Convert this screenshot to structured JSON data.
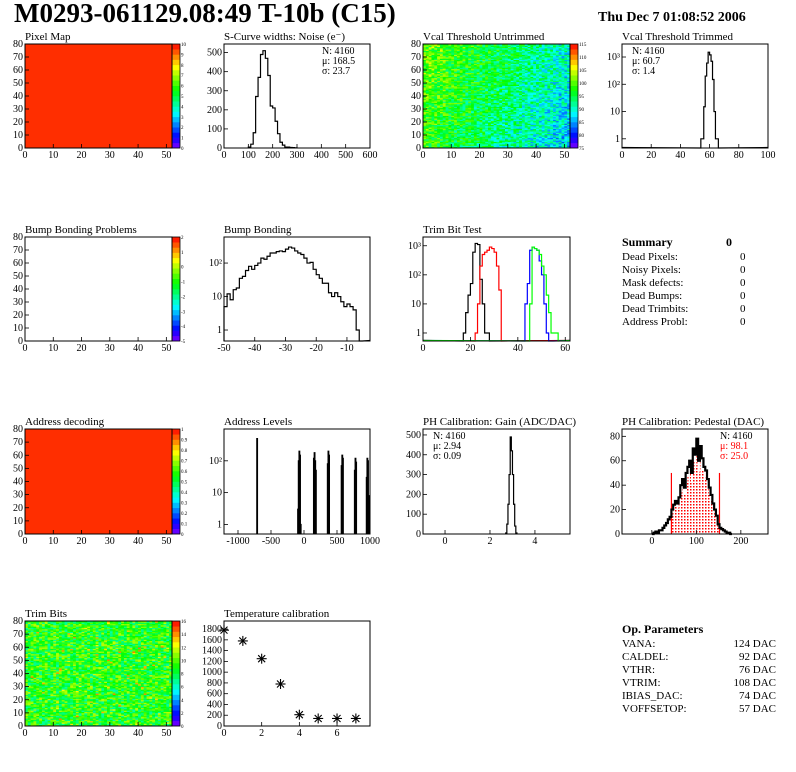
{
  "header": {
    "title": "M0293-061129.08:49 T-10b (C15)",
    "date": "Thu Dec  7 01:08:52 2006"
  },
  "summary": {
    "title": "Summary",
    "total": "0",
    "rows": [
      {
        "label": "Dead Pixels:",
        "value": "0"
      },
      {
        "label": "Noisy Pixels:",
        "value": "0"
      },
      {
        "label": "Mask defects:",
        "value": "0"
      },
      {
        "label": "Dead Bumps:",
        "value": "0"
      },
      {
        "label": "Dead Trimbits:",
        "value": "0"
      },
      {
        "label": "Address Probl:",
        "value": "0"
      }
    ]
  },
  "op_parameters": {
    "title": "Op. Parameters",
    "rows": [
      {
        "label": "VANA:",
        "value": "124 DAC"
      },
      {
        "label": "CALDEL:",
        "value": "92 DAC"
      },
      {
        "label": "VTHR:",
        "value": "76 DAC"
      },
      {
        "label": "VTRIM:",
        "value": "108 DAC"
      },
      {
        "label": "IBIAS_DAC:",
        "value": "74 DAC"
      },
      {
        "label": "VOFFSETOP:",
        "value": "57 DAC"
      }
    ]
  },
  "colors": {
    "hist": "#000000",
    "red": "#ff0000",
    "blue": "#0000ff",
    "green": "#00ff00"
  },
  "chart_data": [
    {
      "id": "pixel-map",
      "type": "heatmap",
      "title": "Pixel Map",
      "xlim": [
        0,
        52
      ],
      "ylim": [
        0,
        80
      ],
      "xticks": [
        0,
        10,
        20,
        30,
        40,
        50
      ],
      "yticks": [
        0,
        10,
        20,
        30,
        40,
        50,
        60,
        70,
        80
      ],
      "zlim": [
        0,
        10
      ],
      "zticks": [
        "0",
        "1",
        "2",
        "3",
        "4",
        "5",
        "6",
        "7",
        "8",
        "9",
        "10"
      ],
      "pattern": "uniform",
      "value": 10
    },
    {
      "id": "scurve",
      "type": "bar",
      "title": "S-Curve widths: Noise (e⁻)",
      "xlim": [
        0,
        600
      ],
      "ylim": [
        0,
        545
      ],
      "xticks": [
        0,
        100,
        200,
        300,
        400,
        500,
        600
      ],
      "yticks": [
        0,
        100,
        200,
        300,
        400,
        500
      ],
      "stats": [
        "N: 4160",
        "μ: 168.5",
        "σ: 23.7"
      ],
      "series": [
        {
          "color": "#000000",
          "start": 100,
          "width": 10,
          "values": [
            5,
            20,
            80,
            270,
            370,
            490,
            510,
            470,
            380,
            220,
            210,
            140,
            75,
            30,
            15,
            5,
            5,
            3,
            2,
            1
          ]
        }
      ]
    },
    {
      "id": "vcal-untrimmed",
      "type": "heatmap",
      "title": "Vcal Threshold Untrimmed",
      "xlim": [
        0,
        52
      ],
      "ylim": [
        0,
        80
      ],
      "xticks": [
        0,
        10,
        20,
        30,
        40,
        50
      ],
      "yticks": [
        0,
        10,
        20,
        30,
        40,
        50,
        60,
        70,
        80
      ],
      "zlim": [
        75,
        117
      ],
      "zticks": [
        "75",
        "80",
        "85",
        "90",
        "95",
        "100",
        "105",
        "110",
        "115"
      ],
      "pattern": "noisy-gradient",
      "mean": 93
    },
    {
      "id": "vcal-trimmed",
      "type": "bar",
      "title": "Vcal Threshold Trimmed",
      "xlim": [
        0,
        100
      ],
      "ylim": [
        0.46,
        3000
      ],
      "log_y": true,
      "xticks": [
        0,
        20,
        40,
        60,
        80,
        100
      ],
      "yticks": [
        1,
        10,
        100,
        1000
      ],
      "stats": [
        "N: 4160",
        "μ: 60.7",
        "σ:  1.4"
      ],
      "series": [
        {
          "color": "#000000",
          "start": 54,
          "width": 1,
          "values": [
            1,
            1,
            15,
            200,
            600,
            1500,
            1200,
            700,
            150,
            10,
            1,
            1
          ]
        }
      ]
    },
    {
      "id": "bump-problems",
      "type": "heatmap",
      "title": "Bump Bonding Problems",
      "xlim": [
        0,
        52
      ],
      "ylim": [
        0,
        80
      ],
      "xticks": [
        0,
        10,
        20,
        30,
        40,
        50
      ],
      "yticks": [
        0,
        10,
        20,
        30,
        40,
        50,
        60,
        70,
        80
      ],
      "zlim": [
        -5,
        2
      ],
      "zticks": [
        "-5",
        "-4",
        "-3",
        "-2",
        "-1",
        "0",
        "1",
        "2"
      ],
      "pattern": "empty"
    },
    {
      "id": "bump-bonding",
      "type": "bar",
      "title": "Bump Bonding",
      "xlim": [
        -50,
        -2.5
      ],
      "ylim": [
        0.47,
        600
      ],
      "log_y": true,
      "xticks": [
        -50,
        -40,
        -30,
        -20,
        -10
      ],
      "yticks": [
        1,
        10,
        100
      ],
      "series": [
        {
          "color": "#000000",
          "start": -50,
          "width": 1,
          "values": [
            5,
            12,
            8,
            16,
            18,
            35,
            40,
            60,
            80,
            65,
            85,
            100,
            140,
            130,
            160,
            200,
            200,
            220,
            230,
            220,
            260,
            300,
            280,
            230,
            200,
            180,
            140,
            100,
            105,
            65,
            45,
            35,
            25,
            25,
            13,
            10,
            13,
            10,
            7,
            5,
            6,
            5,
            4,
            1,
            0.4
          ]
        }
      ]
    },
    {
      "id": "trim-bit-test",
      "type": "bar",
      "title": "Trim Bit Test",
      "xlim": [
        0,
        62
      ],
      "ylim": [
        0.53,
        2000
      ],
      "log_y": true,
      "xticks": [
        0,
        20,
        40,
        60
      ],
      "yticks": [
        1,
        10,
        100,
        1000
      ],
      "series": [
        {
          "color": "#000000",
          "start": 17,
          "width": 1,
          "values": [
            1,
            5,
            20,
            50,
            600,
            1200,
            1100,
            70,
            10,
            1,
            1
          ]
        },
        {
          "color": "#ff0000",
          "start": 22,
          "width": 1,
          "values": [
            1,
            10,
            200,
            500,
            600,
            700,
            900,
            800,
            600,
            200,
            30
          ]
        },
        {
          "color": "#0000ff",
          "start": 43,
          "width": 1,
          "values": [
            10,
            50,
            700,
            900,
            800,
            700,
            300,
            100,
            10,
            1,
            0.4,
            0.4
          ]
        },
        {
          "color": "#00ff00",
          "start": 45,
          "width": 1,
          "values": [
            10,
            900,
            800,
            700,
            500,
            200,
            100,
            20,
            5,
            1,
            1,
            1
          ]
        }
      ]
    },
    {
      "id": "address-decoding",
      "type": "heatmap",
      "title": "Address decoding",
      "xlim": [
        0,
        52
      ],
      "ylim": [
        0,
        80
      ],
      "xticks": [
        0,
        10,
        20,
        30,
        40,
        50
      ],
      "yticks": [
        0,
        10,
        20,
        30,
        40,
        50,
        60,
        70,
        80
      ],
      "zlim": [
        0,
        1
      ],
      "zticks": [
        "0",
        "0.1",
        "0.2",
        "0.3",
        "0.4",
        "0.5",
        "0.6",
        "0.7",
        "0.8",
        "0.9",
        "1"
      ],
      "pattern": "uniform",
      "value": 1
    },
    {
      "id": "address-levels",
      "type": "bar",
      "title": "Address Levels",
      "xlim": [
        -1212,
        1000
      ],
      "ylim": [
        0.5,
        1000
      ],
      "log_y": true,
      "xticks": [
        -1000,
        -500,
        0,
        500,
        1000
      ],
      "yticks": [
        1,
        10,
        100
      ],
      "series": [
        {
          "color": "#000000",
          "start": -720,
          "width": 10,
          "peaks": [
            [
              -710,
              500
            ],
            [
              -90,
              3
            ],
            [
              -80,
              100
            ],
            [
              -70,
              200
            ],
            [
              -60,
              150
            ],
            [
              -50,
              1
            ],
            [
              150,
              120
            ],
            [
              160,
              180
            ],
            [
              170,
              100
            ],
            [
              180,
              50
            ],
            [
              360,
              80
            ],
            [
              370,
              200
            ],
            [
              380,
              150
            ],
            [
              570,
              70
            ],
            [
              580,
              150
            ],
            [
              590,
              120
            ],
            [
              770,
              50
            ],
            [
              780,
              120
            ],
            [
              790,
              90
            ],
            [
              950,
              30
            ],
            [
              960,
              120
            ],
            [
              970,
              100
            ],
            [
              980,
              8
            ]
          ]
        }
      ]
    },
    {
      "id": "ph-gain",
      "type": "bar",
      "title": "PH Calibration: Gain (ADC/DAC)",
      "xlim": [
        -0.98,
        5.56
      ],
      "ylim": [
        0,
        530
      ],
      "xticks": [
        0,
        2,
        4
      ],
      "yticks": [
        0,
        100,
        200,
        300,
        400,
        500
      ],
      "stats": [
        "N: 4160",
        "μ: 2.94",
        "σ: 0.09"
      ],
      "series": [
        {
          "color": "#000000",
          "start": 2.7,
          "width": 0.05,
          "values": [
            5,
            50,
            150,
            300,
            490,
            420,
            300,
            150,
            40,
            5
          ]
        }
      ]
    },
    {
      "id": "ph-pedestal",
      "type": "bar",
      "title": "PH Calibration: Pedestal (DAC)",
      "xlim": [
        -67,
        261
      ],
      "ylim": [
        0,
        86
      ],
      "xticks": [
        0,
        100,
        200
      ],
      "yticks": [
        0,
        20,
        40,
        60,
        80
      ],
      "stats": [
        "N: 4160",
        "μ: 98.1",
        "σ: 25.0"
      ],
      "stats_colors": [
        "#000000",
        "#ff0000",
        "#ff0000"
      ],
      "fit_range": [
        44,
        152
      ],
      "series": [
        {
          "color": "#000000",
          "start": 0,
          "width": 4,
          "values": [
            0,
            1,
            2,
            1,
            3,
            3,
            5,
            7,
            9,
            12,
            14,
            20,
            24,
            27,
            25,
            30,
            40,
            45,
            38,
            50,
            55,
            60,
            50,
            70,
            65,
            78,
            60,
            72,
            62,
            55,
            52,
            45,
            38,
            32,
            25,
            20,
            15,
            8,
            5,
            4,
            3,
            2,
            1,
            1,
            0
          ]
        }
      ]
    },
    {
      "id": "trim-bits",
      "type": "heatmap",
      "title": "Trim Bits",
      "xlim": [
        0,
        52
      ],
      "ylim": [
        0,
        80
      ],
      "xticks": [
        0,
        10,
        20,
        30,
        40,
        50
      ],
      "yticks": [
        0,
        10,
        20,
        30,
        40,
        50,
        60,
        70,
        80
      ],
      "zlim": [
        0,
        16
      ],
      "zticks": [
        "0",
        "2",
        "4",
        "6",
        "8",
        "10",
        "12",
        "14",
        "16"
      ],
      "pattern": "noisy",
      "mean": 9
    },
    {
      "id": "temperature-calibration",
      "type": "scatter",
      "title": "Temperature calibration",
      "xlim": [
        0,
        7.75
      ],
      "ylim": [
        0,
        1950
      ],
      "xticks": [
        0,
        2,
        4,
        6
      ],
      "yticks": [
        0,
        200,
        400,
        600,
        800,
        1000,
        1200,
        1400,
        1600,
        1800
      ],
      "x": [
        0,
        1,
        2,
        3,
        4,
        5,
        6,
        7
      ],
      "y": [
        1780,
        1580,
        1250,
        780,
        210,
        140,
        140,
        140
      ]
    }
  ]
}
